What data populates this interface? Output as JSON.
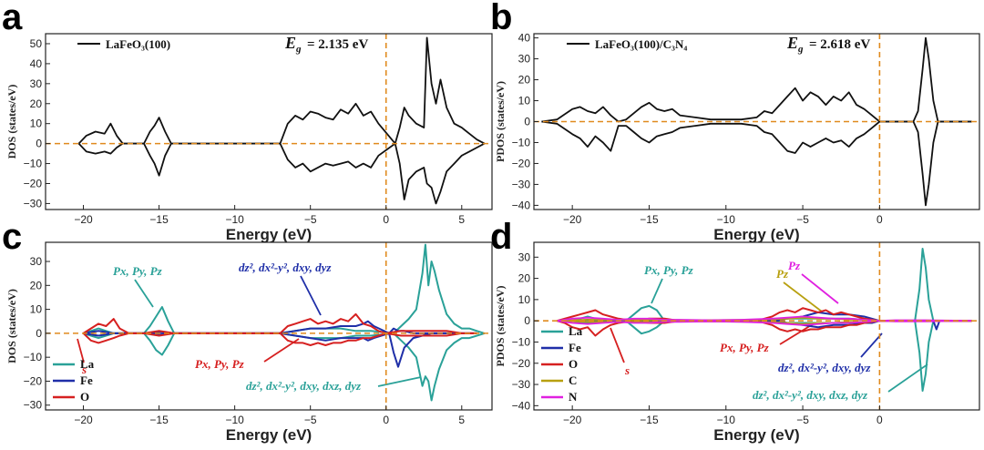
{
  "chart_data": [
    {
      "panel": "a",
      "type": "line",
      "xlabel": "Energy (eV)",
      "ylabel": "DOS (states/eV)",
      "xlim": [
        -22.5,
        7
      ],
      "ylim": [
        -33,
        55
      ],
      "xticks": [
        -20,
        -15,
        -10,
        -5,
        0,
        5
      ],
      "yticks": [
        -30,
        -20,
        -10,
        0,
        10,
        20,
        30,
        40,
        50
      ],
      "legend": "top-left",
      "legend_label": "LaFeO₃(100)",
      "gap_text": "= 2.135 eV",
      "fermi_level": 0,
      "series": [
        {
          "name": "LaFeO₃(100)",
          "color": "#111111",
          "x": [
            -20.3,
            -19.8,
            -19.2,
            -18.6,
            -18.2,
            -17.8,
            -17.4,
            -16,
            -15.6,
            -15.3,
            -15.0,
            -14.6,
            -14.2,
            -7.0,
            -6.5,
            -6,
            -5.5,
            -5,
            -4.5,
            -4,
            -3.5,
            -3,
            -2.5,
            -2,
            -1.5,
            -1,
            -0.5,
            0.6,
            0.9,
            1.2,
            1.5,
            2,
            2.5,
            2.7,
            3,
            3.3,
            3.6,
            4,
            4.5,
            5,
            5.5,
            6,
            6.5
          ],
          "up": [
            0,
            4,
            6,
            5,
            10,
            4,
            0,
            0,
            6,
            9,
            13,
            6,
            0,
            0,
            10,
            14,
            12,
            16,
            15,
            13,
            12,
            17,
            15,
            20,
            14,
            16,
            10,
            0,
            8,
            18,
            14,
            10,
            8,
            53,
            30,
            20,
            32,
            18,
            10,
            8,
            5,
            2,
            0
          ],
          "down": [
            0,
            -4,
            -5,
            -4,
            -5,
            -2,
            0,
            0,
            -6,
            -10,
            -16,
            -6,
            0,
            0,
            -8,
            -12,
            -10,
            -14,
            -12,
            -10,
            -11,
            -10,
            -9,
            -12,
            -10,
            -12,
            -6,
            0,
            -10,
            -28,
            -18,
            -14,
            -12,
            -20,
            -22,
            -30,
            -24,
            -14,
            -10,
            -6,
            -4,
            -2,
            0
          ]
        }
      ]
    },
    {
      "panel": "b",
      "type": "line",
      "xlabel": "Energy (eV)",
      "ylabel": "PDOS (states/eV)",
      "xlim": [
        -22.5,
        6.5
      ],
      "ylim": [
        -42,
        42
      ],
      "xticks": [
        -20,
        -15,
        -10,
        -5,
        0
      ],
      "yticks": [
        -40,
        -30,
        -20,
        -10,
        0,
        10,
        20,
        30,
        40
      ],
      "legend": "top-left",
      "legend_label": "LaFeO₃(100)/C₃N₄",
      "gap_text": "= 2.618 eV",
      "fermi_level": 0,
      "series": [
        {
          "name": "LaFeO₃(100)/C₃N₄",
          "color": "#111111",
          "x": [
            -22,
            -21,
            -20,
            -19.5,
            -19,
            -18.5,
            -18,
            -17.5,
            -17,
            -16.5,
            -16,
            -15.5,
            -15,
            -14.5,
            -14,
            -13.5,
            -13,
            -12,
            -11,
            -10,
            -9,
            -8,
            -7.5,
            -7,
            -6.5,
            -6,
            -5.5,
            -5,
            -4.5,
            -4,
            -3.5,
            -3,
            -2.5,
            -2,
            -1.5,
            -1,
            -0.5,
            0,
            2.2,
            2.5,
            2.8,
            3.0,
            3.2,
            3.5,
            3.8,
            6
          ],
          "up": [
            0,
            1,
            6,
            7,
            5,
            4,
            7,
            3,
            0,
            1,
            4,
            7,
            9,
            6,
            5,
            6,
            3,
            2,
            1,
            1,
            1,
            2,
            5,
            4,
            8,
            12,
            16,
            10,
            14,
            12,
            8,
            12,
            10,
            14,
            8,
            6,
            3,
            0,
            0,
            5,
            25,
            40,
            30,
            10,
            0,
            0
          ],
          "down": [
            0,
            -1,
            -6,
            -8,
            -12,
            -7,
            -10,
            -14,
            -2,
            -2,
            -5,
            -8,
            -10,
            -7,
            -6,
            -5,
            -3,
            -2,
            -1,
            -1,
            -1,
            -2,
            -5,
            -6,
            -10,
            -14,
            -15,
            -10,
            -12,
            -10,
            -8,
            -10,
            -9,
            -12,
            -8,
            -6,
            -3,
            0,
            0,
            -5,
            -25,
            -40,
            -30,
            -10,
            0,
            0
          ]
        }
      ]
    },
    {
      "panel": "c",
      "type": "line",
      "xlabel": "Energy (eV)",
      "ylabel": "DOS (states/eV)",
      "xlim": [
        -22.5,
        7
      ],
      "ylim": [
        -32,
        38
      ],
      "xticks": [
        -20,
        -15,
        -10,
        -5,
        0,
        5
      ],
      "yticks": [
        -30,
        -20,
        -10,
        0,
        10,
        20,
        30
      ],
      "legend": "bottom-left",
      "legend_entries": [
        "La",
        "Fe",
        "O"
      ],
      "fermi_level": 0,
      "annotations": [
        "Px, Py, Pz",
        "dz², dx²-y², dxy, dyz",
        "s",
        "Px, Py, Pz",
        "dz², dx²-y², dxy, dxz, dyz"
      ],
      "series": [
        {
          "name": "La",
          "color": "#2aa198",
          "x": [
            -20,
            -19.5,
            -19,
            -18.5,
            -18,
            -16,
            -15.6,
            -15.2,
            -14.8,
            -14.4,
            -14,
            -7,
            -6,
            -5,
            -4,
            -3,
            -2,
            -1,
            0.5,
            1,
            1.5,
            2,
            2.4,
            2.6,
            2.8,
            3.0,
            3.2,
            3.5,
            4,
            4.5,
            5,
            5.5,
            6,
            6.5
          ],
          "up": [
            0,
            1,
            2,
            1,
            0,
            0,
            3,
            7,
            11,
            5,
            0,
            0,
            1,
            2,
            2,
            2,
            1,
            1,
            0,
            3,
            6,
            10,
            25,
            37,
            20,
            30,
            26,
            18,
            8,
            4,
            2,
            2,
            1,
            0
          ],
          "down": [
            0,
            -1,
            -2,
            -1,
            0,
            0,
            -3,
            -7,
            -9,
            -5,
            0,
            0,
            -1,
            -2,
            -2,
            -2,
            -1,
            -1,
            0,
            -3,
            -6,
            -10,
            -22,
            -18,
            -20,
            -28,
            -22,
            -15,
            -7,
            -4,
            -2,
            -2,
            -1,
            0
          ]
        },
        {
          "name": "Fe",
          "color": "#1f2fa8",
          "x": [
            -20,
            -19,
            -18,
            -16,
            -15,
            -14,
            -7,
            -6,
            -5,
            -4,
            -3,
            -2,
            -1.5,
            -1.2,
            -0.8,
            0.2,
            0.5,
            0.8,
            1.2,
            1.8,
            3,
            5,
            6
          ],
          "up": [
            0,
            1,
            0,
            0,
            0.5,
            0,
            0,
            1,
            2,
            2,
            3,
            3,
            4,
            5,
            3,
            0,
            2,
            1,
            1,
            0,
            0,
            0,
            0
          ],
          "down": [
            0,
            -1,
            0,
            0,
            -0.5,
            0,
            0,
            -1,
            -2,
            -3,
            -2,
            -2,
            -2,
            -3,
            -2,
            0,
            -8,
            -14,
            -6,
            -2,
            0,
            0,
            0
          ]
        },
        {
          "name": "O",
          "color": "#d62020",
          "x": [
            -20,
            -19.5,
            -19,
            -18.5,
            -18,
            -17.6,
            -17,
            -16,
            -15,
            -14,
            -7,
            -6.5,
            -6,
            -5.5,
            -5,
            -4.5,
            -4,
            -3.5,
            -3,
            -2.5,
            -2,
            -1.5,
            -1,
            -0.5,
            0,
            1,
            2,
            3,
            4,
            5,
            6
          ],
          "up": [
            0,
            2,
            4,
            3,
            6,
            2,
            0,
            0,
            1,
            0,
            0,
            3,
            4,
            5,
            6,
            4,
            5,
            4,
            6,
            5,
            8,
            4,
            3,
            1,
            0,
            1,
            1,
            1,
            1,
            0,
            0
          ],
          "down": [
            0,
            -3,
            -4,
            -3,
            -2,
            -1,
            0,
            0,
            -1,
            0,
            0,
            -3,
            -4,
            -4,
            -5,
            -4,
            -5,
            -4,
            -4,
            -3,
            -3,
            -2,
            -2,
            -1,
            0,
            -1,
            -1,
            -1,
            -1,
            0,
            0
          ]
        }
      ]
    },
    {
      "panel": "d",
      "type": "line",
      "xlabel": "Energy (eV)",
      "ylabel": "PDOS (states/eV)",
      "xlim": [
        -22.5,
        6.5
      ],
      "ylim": [
        -42,
        37
      ],
      "xticks": [
        -20,
        -15,
        -10,
        -5,
        0
      ],
      "yticks": [
        -40,
        -30,
        -20,
        -10,
        0,
        10,
        20,
        30
      ],
      "legend": "bottom-left",
      "legend_entries": [
        "La",
        "Fe",
        "O",
        "C",
        "N"
      ],
      "fermi_level": 0,
      "annotations": [
        "Px, Py, Pz",
        "Pz",
        "Pz",
        "s",
        "Px, Py, Pz",
        "dz², dx²-y², dxy, dyz",
        "dz², dx²-y², dxy, dxz, dyz"
      ],
      "series": [
        {
          "name": "La",
          "color": "#2aa198",
          "x": [
            -20,
            -19.5,
            -19,
            -18.5,
            -18,
            -16.5,
            -16,
            -15.5,
            -15,
            -14.5,
            -14,
            -7,
            -6,
            -5,
            -4,
            -3,
            -2,
            -1,
            0,
            2.3,
            2.6,
            2.8,
            3.0,
            3.2,
            3.5,
            6
          ],
          "up": [
            0,
            1,
            2,
            1,
            0,
            0,
            3,
            6,
            7,
            5,
            0,
            0,
            1,
            1,
            1,
            1,
            1,
            0.5,
            0,
            0,
            15,
            34,
            25,
            10,
            0,
            0
          ],
          "down": [
            0,
            -1,
            -1,
            -1,
            0,
            0,
            -3,
            -6,
            -5,
            -3,
            0,
            0,
            -1,
            -1,
            -1,
            -1,
            -1,
            -0.5,
            0,
            0,
            -15,
            -33,
            -25,
            -10,
            0,
            0
          ]
        },
        {
          "name": "Fe",
          "color": "#1f2fa8",
          "x": [
            -20,
            -19,
            -18,
            -16,
            -15,
            -14,
            -7,
            -6,
            -5,
            -4,
            -3,
            -2,
            -1,
            -0.5,
            0,
            3.5,
            3.7,
            3.9,
            6
          ],
          "up": [
            0,
            0.5,
            0,
            0,
            0.3,
            0,
            0,
            1,
            2,
            4,
            3,
            3,
            2,
            1,
            0,
            0,
            0,
            0,
            0
          ],
          "down": [
            0,
            -0.5,
            0,
            0,
            -0.3,
            0,
            0,
            -1,
            -2,
            -3,
            -2,
            -2,
            -1,
            -1,
            0,
            0,
            -4,
            0,
            0
          ]
        },
        {
          "name": "O",
          "color": "#d62020",
          "x": [
            -21,
            -20.5,
            -20,
            -19.5,
            -19,
            -18.5,
            -18,
            -17.5,
            -17,
            -16,
            -15,
            -14,
            -13,
            -8,
            -7,
            -6.5,
            -6,
            -5.5,
            -5,
            -4.5,
            -4,
            -3.5,
            -3,
            -2.5,
            -2,
            -1.5,
            -1,
            0,
            6
          ],
          "up": [
            0,
            1,
            2,
            3,
            4,
            5,
            3,
            2,
            1,
            0,
            1,
            1,
            0,
            0,
            2,
            4,
            5,
            4,
            6,
            5,
            4,
            5,
            3,
            4,
            3,
            2,
            1,
            0,
            0
          ],
          "down": [
            0,
            -1,
            -3,
            -4,
            -3,
            -7,
            -4,
            -2,
            -1,
            0,
            -1,
            -1,
            0,
            0,
            -2,
            -4,
            -5,
            -4,
            -5,
            -4,
            -4,
            -3,
            -3,
            -3,
            -2,
            -2,
            -1,
            0,
            0
          ]
        },
        {
          "name": "C",
          "color": "#b8a010",
          "x": [
            -21,
            -19,
            -17,
            -15,
            -12,
            -8,
            -6,
            -5,
            -4,
            -3,
            -2,
            -1,
            0,
            6
          ],
          "up": [
            0,
            0.5,
            0.5,
            0.5,
            0.3,
            0.5,
            1,
            1.5,
            1,
            1,
            0.5,
            0.5,
            0,
            0
          ],
          "down": [
            0,
            -0.5,
            -0.5,
            -0.5,
            -0.3,
            -0.5,
            -1,
            -1.5,
            -1,
            -1,
            -0.5,
            -0.5,
            0,
            0
          ]
        },
        {
          "name": "N",
          "color": "#e020e0",
          "x": [
            -21,
            -20,
            -19,
            -18,
            -17,
            -16,
            -15,
            -14,
            -13,
            -11,
            -9,
            -7,
            -6,
            -5,
            -4,
            -3,
            -2,
            -1,
            0,
            1,
            3,
            6
          ],
          "up": [
            0,
            1,
            1.5,
            1,
            0.5,
            1,
            1,
            0.5,
            0.5,
            0.3,
            0.5,
            1,
            1.5,
            2,
            1.5,
            1,
            1,
            0.5,
            0,
            0.3,
            0.3,
            0
          ],
          "down": [
            0,
            -1,
            -1.5,
            -1,
            -0.5,
            -1,
            -1,
            -0.5,
            -0.5,
            -0.3,
            -0.5,
            -1,
            -1.5,
            -2,
            -1.5,
            -1,
            -1,
            -0.5,
            0,
            -0.3,
            -0.3,
            0
          ]
        }
      ]
    }
  ]
}
